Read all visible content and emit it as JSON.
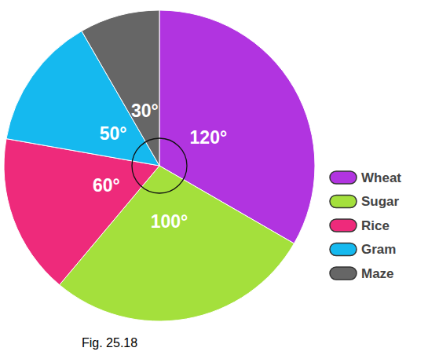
{
  "chart_data": {
    "type": "pie",
    "categories": [
      "Wheat",
      "Sugar",
      "Rice",
      "Gram",
      "Maze"
    ],
    "values": [
      120,
      100,
      60,
      50,
      30
    ],
    "value_labels": [
      "120°",
      "100°",
      "60°",
      "50°",
      "30°"
    ],
    "colors": [
      "#b134e0",
      "#a4e03c",
      "#ee2a7b",
      "#15b9ef",
      "#666666"
    ],
    "data_labels": true,
    "legend": "right",
    "annotations": [
      "Fig. 25.18"
    ]
  }
}
